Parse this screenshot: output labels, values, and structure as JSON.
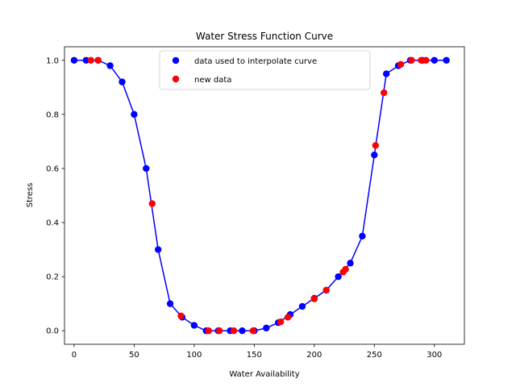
{
  "chart_data": {
    "type": "scatter",
    "title": "Water Stress Function Curve",
    "xlabel": "Water Availability",
    "ylabel": "Stress",
    "xlim": [
      -8,
      325
    ],
    "ylim": [
      -0.05,
      1.05
    ],
    "xticks": [
      0,
      50,
      100,
      150,
      200,
      250,
      300
    ],
    "yticks": [
      0.0,
      0.2,
      0.4,
      0.6,
      0.8,
      1.0
    ],
    "grid": false,
    "legend_placement": "upper-center",
    "line": {
      "color": "#0000ff"
    },
    "series": [
      {
        "name": "data used to interpolate curve",
        "color": "#0000ff",
        "connected": true,
        "x": [
          0,
          10,
          20,
          30,
          40,
          50,
          60,
          70,
          80,
          90,
          100,
          110,
          120,
          130,
          140,
          150,
          160,
          170,
          180,
          190,
          200,
          210,
          220,
          230,
          240,
          250,
          260,
          270,
          280,
          290,
          300,
          310
        ],
        "y": [
          1.0,
          1.0,
          1.0,
          0.98,
          0.92,
          0.8,
          0.6,
          0.3,
          0.1,
          0.05,
          0.02,
          0.0,
          0.0,
          0.0,
          0.0,
          0.0,
          0.01,
          0.03,
          0.06,
          0.09,
          0.12,
          0.15,
          0.2,
          0.25,
          0.35,
          0.65,
          0.95,
          0.98,
          1.0,
          1.0,
          1.0,
          1.0
        ]
      },
      {
        "name": "new data",
        "color": "#ff0000",
        "connected": false,
        "x": [
          14,
          20,
          65,
          89,
          112,
          121,
          133,
          149,
          172,
          178,
          200,
          210,
          224,
          226,
          251,
          258,
          272,
          281,
          289,
          293
        ],
        "y": [
          1.0,
          1.0,
          0.47,
          0.055,
          0.0,
          0.0,
          0.0,
          0.0,
          0.033,
          0.05,
          0.118,
          0.15,
          0.217,
          0.227,
          0.685,
          0.88,
          0.985,
          1.0,
          1.0,
          1.0
        ]
      }
    ]
  }
}
